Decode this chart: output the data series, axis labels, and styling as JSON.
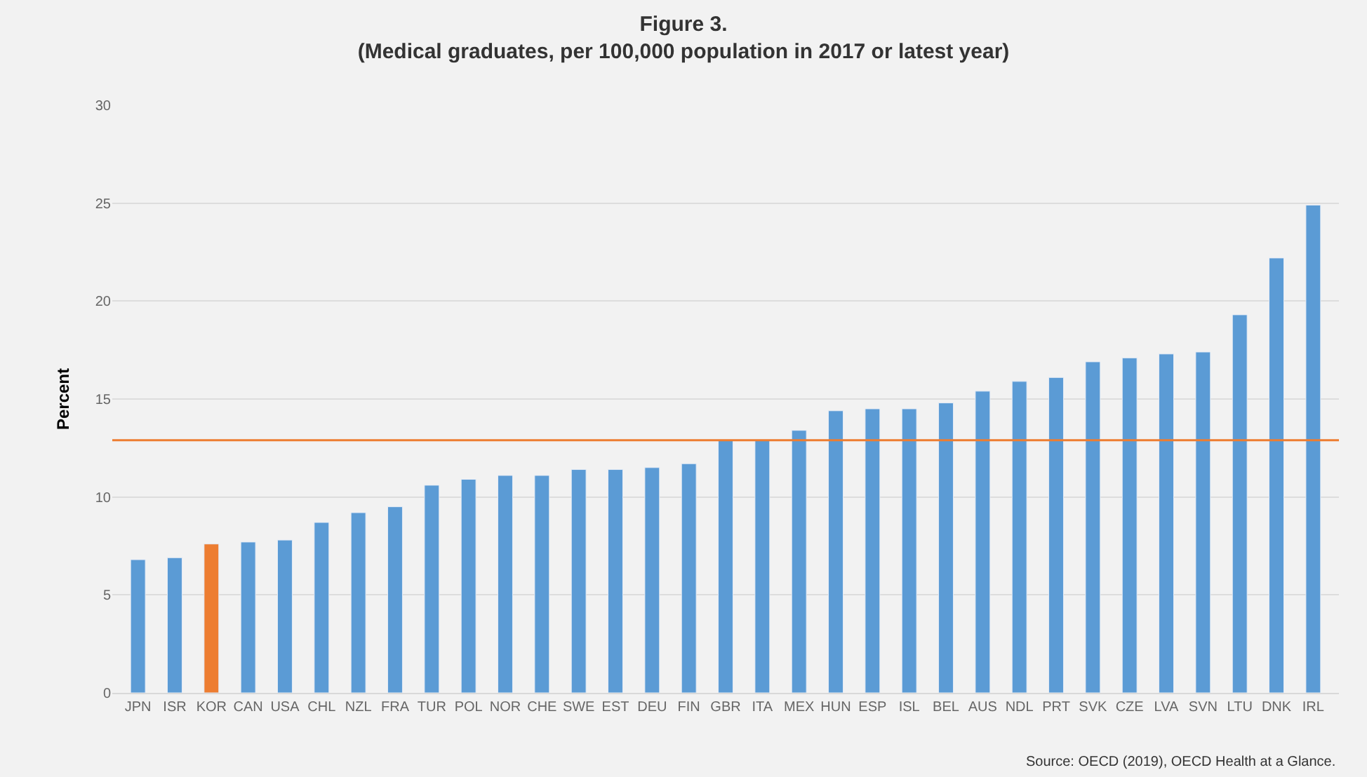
{
  "chart_data": {
    "type": "bar",
    "title": "Figure 3.",
    "subtitle": "(Medical graduates, per 100,000 population in 2017 or latest year)",
    "ylabel": "Percent",
    "categories": [
      "JPN",
      "ISR",
      "KOR",
      "CAN",
      "USA",
      "CHL",
      "NZL",
      "FRA",
      "TUR",
      "POL",
      "NOR",
      "CHE",
      "SWE",
      "EST",
      "DEU",
      "FIN",
      "GBR",
      "ITA",
      "MEX",
      "HUN",
      "ESP",
      "ISL",
      "BEL",
      "AUS",
      "NDL",
      "PRT",
      "SVK",
      "CZE",
      "LVA",
      "SVN",
      "LTU",
      "DNK",
      "IRL"
    ],
    "values": [
      6.8,
      6.9,
      7.6,
      7.7,
      7.8,
      8.7,
      9.2,
      9.5,
      10.6,
      10.9,
      11.1,
      11.1,
      11.4,
      11.4,
      11.5,
      11.7,
      12.9,
      12.9,
      13.4,
      14.4,
      14.5,
      14.5,
      14.8,
      15.4,
      15.9,
      16.1,
      16.9,
      17.1,
      17.3,
      17.4,
      19.3,
      22.2,
      24.9
    ],
    "colors": [
      "#5b9bd5",
      "#5b9bd5",
      "#ed7d31",
      "#5b9bd5",
      "#5b9bd5",
      "#5b9bd5",
      "#5b9bd5",
      "#5b9bd5",
      "#5b9bd5",
      "#5b9bd5",
      "#5b9bd5",
      "#5b9bd5",
      "#5b9bd5",
      "#5b9bd5",
      "#5b9bd5",
      "#5b9bd5",
      "#5b9bd5",
      "#5b9bd5",
      "#5b9bd5",
      "#5b9bd5",
      "#5b9bd5",
      "#5b9bd5",
      "#5b9bd5",
      "#5b9bd5",
      "#5b9bd5",
      "#5b9bd5",
      "#5b9bd5",
      "#5b9bd5",
      "#5b9bd5",
      "#5b9bd5",
      "#5b9bd5",
      "#5b9bd5",
      "#5b9bd5"
    ],
    "ylim": [
      0,
      30
    ],
    "yticks": [
      0,
      5,
      10,
      15,
      20,
      25,
      30
    ],
    "grid": "y",
    "ref_lines": [
      {
        "axis": "y",
        "value": 12.9,
        "color": "#ed7d31",
        "line_style": "solid"
      }
    ],
    "annotations": [
      "Source: OECD (2019), OECD Health at a Glance."
    ]
  }
}
